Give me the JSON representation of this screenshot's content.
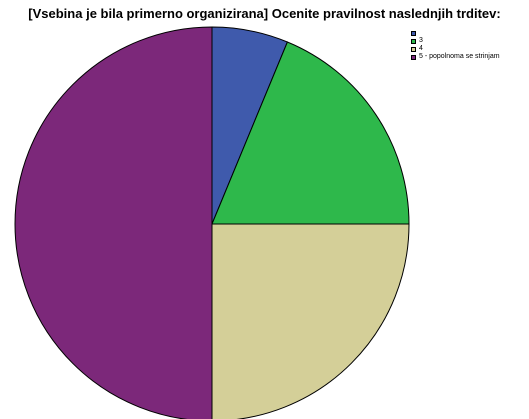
{
  "chart_data": {
    "type": "pie",
    "title": "[Vsebina je bila primerno organizirana] Ocenite pravilnost naslednjih trditev:",
    "categories": [
      "",
      "3",
      "4",
      "5 - popolnoma se strinjam"
    ],
    "values": [
      6.25,
      18.75,
      25.0,
      50.0
    ],
    "colors": [
      "#3f5aac",
      "#2eb84b",
      "#d4cf98",
      "#7c287a"
    ],
    "legend_position": "top-right",
    "start_angle": "12 o'clock",
    "direction": "clockwise"
  }
}
